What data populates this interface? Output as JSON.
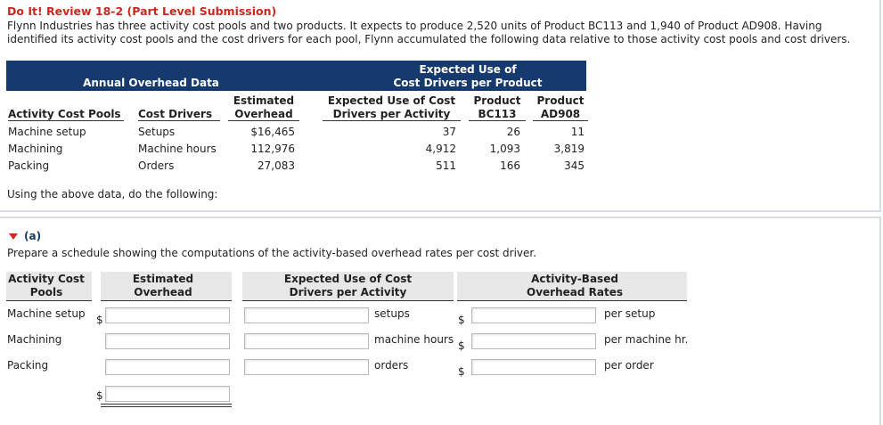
{
  "problem": {
    "title": "Do It! Review 18-2 (Part Level Submission)",
    "intro": "Flynn Industries has three activity cost pools and two products. It expects to produce 2,520 units of Product BC113 and 1,940 of Product AD908. Having identified its activity cost pools and the cost drivers for each pool, Flynn accumulated the following data relative to those activity cost pools and cost drivers.",
    "instruction": "Using the above data, do the following:"
  },
  "data_table": {
    "header_left": "Annual Overhead Data",
    "header_right_line1": "Expected Use of",
    "header_right_line2": "Cost Drivers per Product",
    "col_pool": "Activity Cost Pools",
    "col_driver": "Cost Drivers",
    "col_overhead_1": "Estimated",
    "col_overhead_2": "Overhead",
    "col_use_1": "Expected Use of Cost",
    "col_use_2": "Drivers per Activity",
    "col_bc_1": "Product",
    "col_bc_2": "BC113",
    "col_ad_1": "Product",
    "col_ad_2": "AD908",
    "rows": [
      {
        "pool": "Machine setup",
        "driver": "Setups",
        "overhead": "$16,465",
        "use": "37",
        "bc113": "26",
        "ad908": "11"
      },
      {
        "pool": "Machining",
        "driver": "Machine hours",
        "overhead": "112,976",
        "use": "4,912",
        "bc113": "1,093",
        "ad908": "3,819"
      },
      {
        "pool": "Packing",
        "driver": "Orders",
        "overhead": "27,083",
        "use": "511",
        "bc113": "166",
        "ad908": "345"
      }
    ]
  },
  "part_a": {
    "label": "(a)",
    "prompt": "Prepare a schedule showing the computations of the activity-based overhead rates per cost driver.",
    "col_pool_1": "Activity Cost",
    "col_pool_2": "Pools",
    "col_overhead_1": "Estimated",
    "col_overhead_2": "Overhead",
    "col_use_1": "Expected Use of Cost",
    "col_use_2": "Drivers per Activity",
    "col_rate_1": "Activity-Based",
    "col_rate_2": "Overhead Rates",
    "currency": "$",
    "rows": [
      {
        "pool": "Machine setup",
        "unit": "setups",
        "per": "per setup"
      },
      {
        "pool": "Machining",
        "unit": "machine hours",
        "per": "per machine hr."
      },
      {
        "pool": "Packing",
        "unit": "orders",
        "per": "per order"
      }
    ]
  },
  "colors": {
    "title": "#c8281e",
    "header_bar": "#173a6e",
    "gray_header": "#e7e7e7"
  }
}
